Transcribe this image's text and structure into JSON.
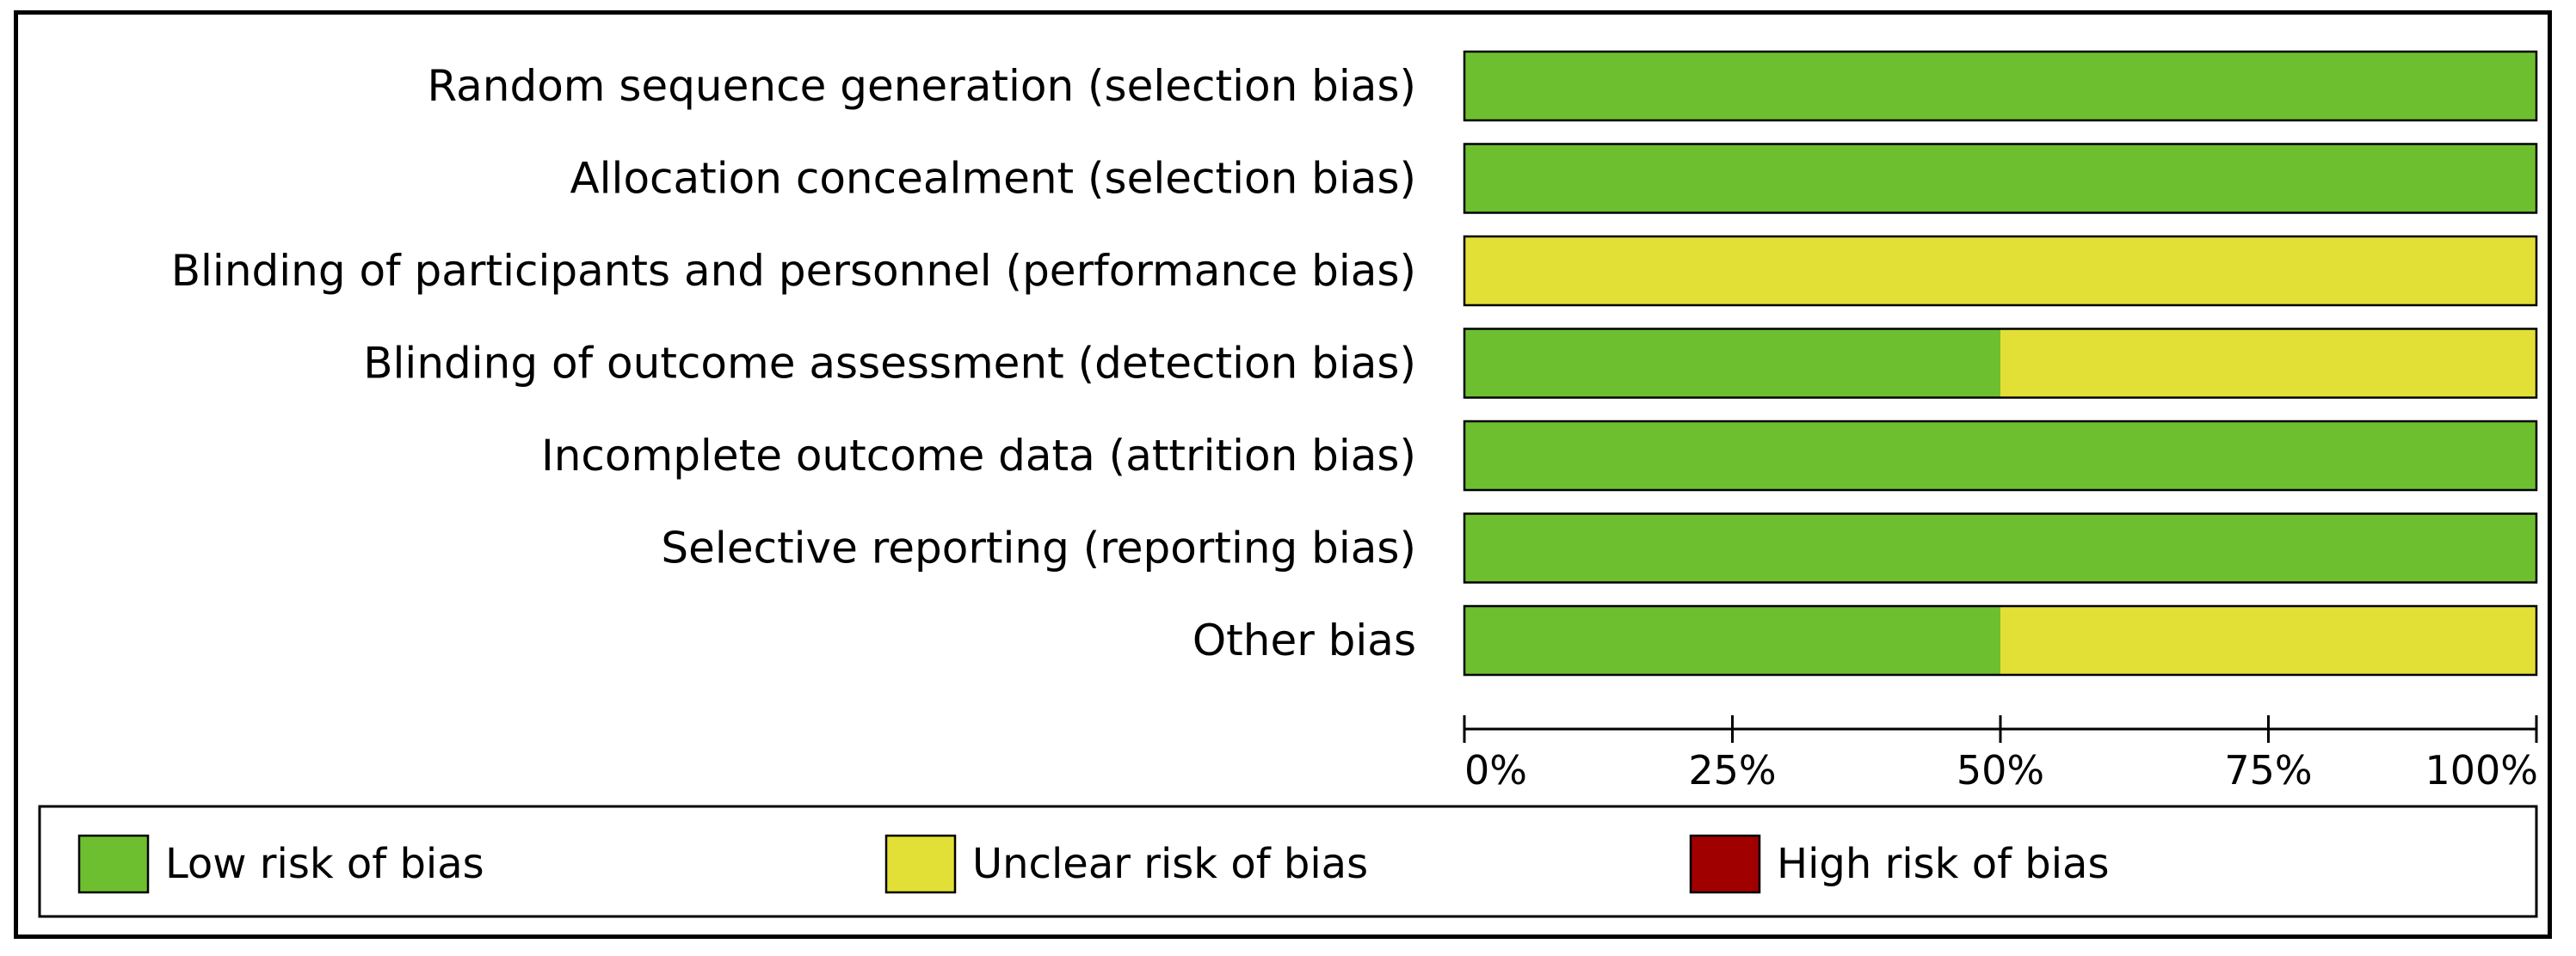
{
  "chart_data": {
    "type": "bar",
    "orientation": "horizontal",
    "stacked": true,
    "categories": [
      "Random sequence generation (selection bias)",
      "Allocation concealment (selection bias)",
      "Blinding of participants and personnel (performance bias)",
      "Blinding of outcome assessment (detection bias)",
      "Incomplete outcome data (attrition bias)",
      "Selective reporting (reporting bias)",
      "Other bias"
    ],
    "series": [
      {
        "name": "Low risk of bias",
        "color": "#6ebf2f",
        "values": [
          100,
          100,
          0,
          50,
          100,
          100,
          50
        ]
      },
      {
        "name": "Unclear risk of bias",
        "color": "#e2df36",
        "values": [
          0,
          0,
          100,
          50,
          0,
          0,
          50
        ]
      },
      {
        "name": "High risk of bias",
        "color": "#a00000",
        "values": [
          0,
          0,
          0,
          0,
          0,
          0,
          0
        ]
      }
    ],
    "xlim": [
      0,
      100
    ],
    "x_ticks": [
      0,
      25,
      50,
      75,
      100
    ],
    "x_tick_labels": [
      "0%",
      "25%",
      "50%",
      "75%",
      "100%"
    ],
    "legend": {
      "placement": "bottom"
    },
    "grid": false
  }
}
